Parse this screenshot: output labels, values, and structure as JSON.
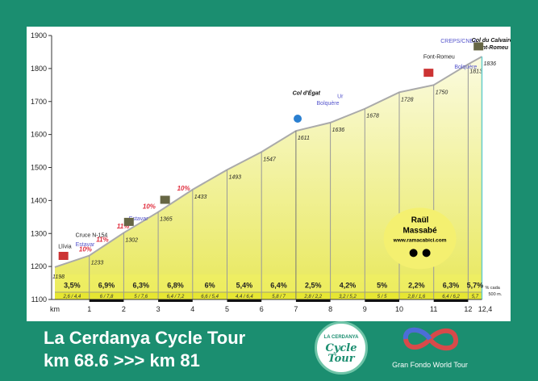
{
  "chart_data": {
    "type": "area",
    "title": "La Cerdanya Cycle Tour",
    "subtitle": "km 68.6 >>> km 81",
    "xlabel": "km",
    "ylabel": "",
    "ylim": [
      1100,
      1900
    ],
    "xlim": [
      0,
      12.4
    ],
    "yticks": [
      1100,
      1200,
      1300,
      1400,
      1500,
      1600,
      1700,
      1800,
      1900
    ],
    "xticks": [
      "1",
      "2",
      "3",
      "4",
      "5",
      "6",
      "7",
      "8",
      "9",
      "10",
      "11",
      "12",
      "12,4"
    ],
    "x": [
      0,
      1,
      2,
      3,
      4,
      5,
      6,
      7,
      8,
      9,
      10,
      11,
      12,
      12.4
    ],
    "elevation": [
      1198,
      1233,
      1302,
      1365,
      1433,
      1493,
      1547,
      1611,
      1636,
      1678,
      1728,
      1750,
      1813,
      1836
    ],
    "elevation_labels": [
      "1198",
      "1233",
      "1302",
      "1365",
      "1433",
      "1493",
      "1547",
      "1611",
      "1636",
      "1678",
      "1728",
      "1750",
      "1813",
      "1836"
    ],
    "gradients": [
      "3,5%",
      "6,9%",
      "6,3%",
      "6,8%",
      "6%",
      "5,4%",
      "6,4%",
      "2,5%",
      "4,2%",
      "5%",
      "2,2%",
      "6,3%",
      "5,7%"
    ],
    "half_km_gradients": [
      "2,6 / 4,4",
      "6 / 7,8",
      "5 / 7,6",
      "6,4 / 7,2",
      "6,6 / 5,4",
      "4,4 / 6,4",
      "5,8 / 7",
      "2,8 / 2,2",
      "3,2 / 5,2",
      "5 / 5",
      "2,8 / 1,6",
      "6,4 / 6,2",
      "5,7"
    ],
    "half_km_note": [
      "% cada",
      "500 m."
    ],
    "annotations": [
      {
        "text": "Cruce N-154",
        "x": 0.6,
        "y": 1290,
        "color": "#222"
      },
      {
        "text": "Llívia",
        "x": 0.1,
        "y": 1255,
        "color": "#222"
      },
      {
        "text": "Estavar",
        "x": 0.6,
        "y": 1262,
        "color": "#5555cc"
      },
      {
        "text": "10%",
        "x": 0.7,
        "y": 1245,
        "color": "#e03040"
      },
      {
        "text": "11%",
        "x": 1.2,
        "y": 1275,
        "color": "#e03040"
      },
      {
        "text": "11%",
        "x": 1.8,
        "y": 1315,
        "color": "#e03040"
      },
      {
        "text": "Estavar",
        "x": 2.15,
        "y": 1340,
        "color": "#5555cc"
      },
      {
        "text": "10%",
        "x": 2.55,
        "y": 1375,
        "color": "#e03040"
      },
      {
        "text": "10%",
        "x": 3.55,
        "y": 1430,
        "color": "#e03040"
      },
      {
        "text": "Col d'Égat",
        "x": 6.9,
        "y": 1720,
        "color": "#111"
      },
      {
        "text": "Ur",
        "x": 8.2,
        "y": 1710,
        "color": "#5555cc"
      },
      {
        "text": "Bolquère",
        "x": 7.6,
        "y": 1690,
        "color": "#5555cc"
      },
      {
        "text": "Font-Romeu",
        "x": 10.7,
        "y": 1830,
        "color": "#222"
      },
      {
        "text": "Bolquère",
        "x": 11.6,
        "y": 1800,
        "color": "#5555cc"
      },
      {
        "text": "CREPS/CNEA",
        "x": 11.2,
        "y": 1878,
        "color": "#5555cc"
      },
      {
        "text": "Col du Calvaire",
        "x": 12.1,
        "y": 1880,
        "color": "#111"
      },
      {
        "text": "Font-Romeu",
        "x": 12.2,
        "y": 1858,
        "color": "#111"
      }
    ],
    "author": [
      "Raül",
      "Massabé",
      "www.ramacabici.com"
    ],
    "colors": {
      "fill_top": "#fbfbe0",
      "fill_bottom": "#e8e85a",
      "line": "#aaaaaa",
      "frame": "#1b8e70"
    }
  },
  "footer": {
    "title": "La Cerdanya Cycle Tour",
    "subtitle": "km 68.6 >>> km 81",
    "logo_top": "LA CERDANYA",
    "logo_main1": "Cycle",
    "logo_main2": "Tour",
    "sponsor": "Gran Fondo World Tour"
  }
}
